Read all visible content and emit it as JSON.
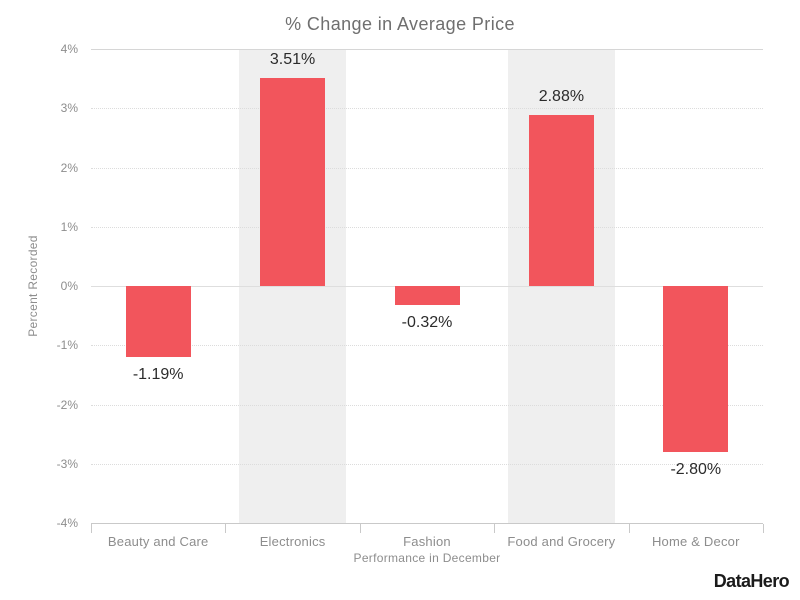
{
  "chart_data": {
    "type": "bar",
    "title": "% Change in Average Price",
    "categories": [
      "Beauty and Care",
      "Electronics",
      "Fashion",
      "Food and Grocery",
      "Home & Decor"
    ],
    "values": [
      -1.19,
      3.51,
      -0.32,
      2.88,
      -2.8
    ],
    "data_labels": [
      "-1.19%",
      "3.51%",
      "-0.32%",
      "2.88%",
      "-2.80%"
    ],
    "xlabel": "Performance in December",
    "ylabel": "Percent Recorded",
    "ylim": [
      -4,
      4
    ],
    "ytick_step": 1,
    "ytick_labels": [
      "-4%",
      "-3%",
      "-2%",
      "-1%",
      "0%",
      "1%",
      "2%",
      "3%",
      "4%"
    ],
    "grid": "horizontal-dotted",
    "legend": "none",
    "banded_categories": [
      1,
      3
    ],
    "colors": {
      "bar": "#f2555c",
      "band": "#efefef",
      "title_text": "#6f6f6f",
      "axis_text": "#8d8d8d",
      "value_label_text": "#2b2b2b"
    }
  },
  "branding": {
    "logo_text": "DataHero"
  }
}
